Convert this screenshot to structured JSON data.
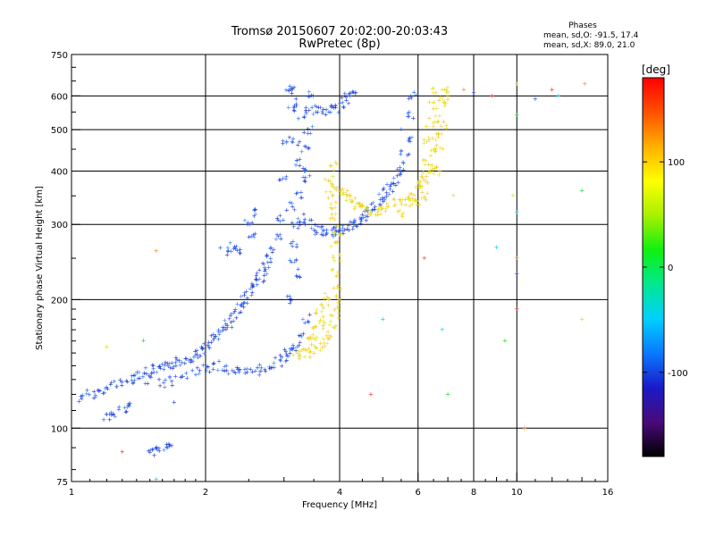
{
  "header": {
    "title_line1": "Tromsø 20150607 20:02:00-20:03:43",
    "title_line2": "RwPretec (8p)",
    "stats_heading": "Phases",
    "stats_o": "mean, sd,O: -91.5, 17.4",
    "stats_x": "mean, sd,X: 89.0, 21.0"
  },
  "chart_data": {
    "type": "scatter",
    "title": "Tromsø 20150607 20:02:00-20:03:43",
    "subtitle": "RwPretec (8p)",
    "xlabel": "Frequency [MHz]",
    "ylabel": "Stationary phase Virtual Height [km]",
    "x_scale": "log",
    "y_scale": "log",
    "xlim": [
      1,
      16
    ],
    "ylim": [
      75,
      750
    ],
    "x_ticks": [
      1,
      2,
      4,
      6,
      8,
      10,
      16
    ],
    "x_tick_labels": [
      "1",
      "2",
      "4",
      "6",
      "8",
      "10",
      "16"
    ],
    "x_minor_ticks": [
      3,
      5,
      7,
      9,
      12,
      14
    ],
    "y_ticks": [
      75,
      100,
      200,
      300,
      400,
      500,
      600,
      750
    ],
    "y_tick_labels": [
      "75",
      "100",
      "200",
      "300",
      "400",
      "500",
      "600",
      "750"
    ],
    "grid": true,
    "colorbar": {
      "label": "[deg]",
      "range": [
        -180,
        180
      ],
      "ticks": [
        100,
        0,
        -100
      ],
      "tick_labels": [
        "100",
        "0",
        "-100"
      ],
      "colormap": [
        "#000000",
        "#4a0a7a",
        "#1a1ac8",
        "#0a78ff",
        "#00d0ff",
        "#00e890",
        "#10f010",
        "#a8f000",
        "#ffff00",
        "#ffb000",
        "#ff5000",
        "#ff0000"
      ]
    },
    "series": [
      {
        "name": "O",
        "color_hint": "#1a3ae0",
        "phase_deg": -91.5,
        "points": [
          [
            1.0,
            115
          ],
          [
            1.05,
            117
          ],
          [
            1.1,
            120
          ],
          [
            1.15,
            121
          ],
          [
            1.2,
            123
          ],
          [
            1.25,
            126
          ],
          [
            1.3,
            128
          ],
          [
            1.35,
            130
          ],
          [
            1.4,
            132
          ],
          [
            1.45,
            134
          ],
          [
            1.5,
            136
          ],
          [
            1.55,
            137
          ],
          [
            1.6,
            138
          ],
          [
            1.65,
            139
          ],
          [
            1.7,
            141
          ],
          [
            1.75,
            143
          ],
          [
            1.8,
            145
          ],
          [
            1.85,
            146
          ],
          [
            1.9,
            148
          ],
          [
            1.95,
            151
          ],
          [
            2.0,
            154
          ],
          [
            2.05,
            158
          ],
          [
            2.1,
            162
          ],
          [
            2.15,
            166
          ],
          [
            2.2,
            170
          ],
          [
            2.25,
            176
          ],
          [
            2.3,
            182
          ],
          [
            2.35,
            188
          ],
          [
            2.4,
            194
          ],
          [
            2.45,
            200
          ],
          [
            2.5,
            206
          ],
          [
            2.55,
            212
          ],
          [
            2.6,
            218
          ],
          [
            2.65,
            225
          ],
          [
            2.7,
            232
          ],
          [
            2.75,
            240
          ],
          [
            2.8,
            250
          ],
          [
            2.85,
            262
          ],
          [
            2.9,
            280
          ],
          [
            2.95,
            310
          ],
          [
            3.0,
            380
          ],
          [
            3.05,
            470
          ],
          [
            3.1,
            560
          ],
          [
            3.15,
            630
          ],
          [
            1.5,
            130
          ],
          [
            1.6,
            127
          ],
          [
            1.7,
            129
          ],
          [
            1.8,
            132
          ],
          [
            1.9,
            135
          ],
          [
            2.0,
            138
          ],
          [
            2.1,
            140
          ],
          [
            2.2,
            138
          ],
          [
            2.3,
            136
          ],
          [
            2.4,
            135
          ],
          [
            2.5,
            135
          ],
          [
            2.6,
            136
          ],
          [
            2.7,
            138
          ],
          [
            2.8,
            140
          ],
          [
            2.9,
            143
          ],
          [
            3.0,
            146
          ],
          [
            3.1,
            150
          ],
          [
            3.2,
            155
          ],
          [
            3.3,
            162
          ],
          [
            3.05,
            150
          ],
          [
            3.1,
            200
          ],
          [
            3.15,
            250
          ],
          [
            3.2,
            300
          ],
          [
            3.25,
            350
          ],
          [
            3.3,
            400
          ],
          [
            3.35,
            450
          ],
          [
            3.4,
            500
          ],
          [
            3.42,
            550
          ],
          [
            3.45,
            600
          ],
          [
            3.1,
            610
          ],
          [
            3.2,
            580
          ],
          [
            3.3,
            540
          ],
          [
            3.25,
            420
          ],
          [
            3.35,
            380
          ],
          [
            3.2,
            470
          ],
          [
            3.1,
            330
          ],
          [
            3.15,
            270
          ],
          [
            3.25,
            230
          ],
          [
            3.35,
            180
          ],
          [
            3.3,
            310
          ],
          [
            3.4,
            300
          ],
          [
            3.5,
            295
          ],
          [
            3.6,
            290
          ],
          [
            3.7,
            288
          ],
          [
            3.8,
            287
          ],
          [
            3.9,
            288
          ],
          [
            4.0,
            290
          ],
          [
            4.1,
            293
          ],
          [
            4.2,
            296
          ],
          [
            4.3,
            300
          ],
          [
            4.4,
            305
          ],
          [
            4.5,
            310
          ],
          [
            4.6,
            316
          ],
          [
            4.7,
            322
          ],
          [
            4.8,
            330
          ],
          [
            4.9,
            338
          ],
          [
            5.0,
            346
          ],
          [
            5.1,
            356
          ],
          [
            5.2,
            366
          ],
          [
            5.3,
            378
          ],
          [
            5.4,
            392
          ],
          [
            5.5,
            410
          ],
          [
            5.6,
            440
          ],
          [
            5.7,
            480
          ],
          [
            5.8,
            540
          ],
          [
            5.85,
            600
          ],
          [
            3.6,
            560
          ],
          [
            3.7,
            550
          ],
          [
            3.8,
            552
          ],
          [
            3.9,
            560
          ],
          [
            4.0,
            570
          ],
          [
            4.1,
            585
          ],
          [
            4.2,
            598
          ],
          [
            4.3,
            605
          ],
          [
            2.3,
            265
          ],
          [
            2.4,
            260
          ],
          [
            2.2,
            258
          ],
          [
            2.5,
            300
          ],
          [
            2.6,
            320
          ],
          [
            2.55,
            280
          ],
          [
            1.2,
            107
          ],
          [
            1.25,
            108
          ],
          [
            1.3,
            110
          ],
          [
            1.35,
            112
          ],
          [
            1.5,
            88
          ],
          [
            1.55,
            89
          ],
          [
            1.6,
            90
          ],
          [
            1.65,
            90
          ]
        ]
      },
      {
        "name": "X",
        "color_hint": "#e6e61a",
        "phase_deg": 89.0,
        "points": [
          [
            3.4,
            150
          ],
          [
            3.5,
            152
          ],
          [
            3.6,
            155
          ],
          [
            3.7,
            158
          ],
          [
            3.8,
            162
          ],
          [
            3.85,
            170
          ],
          [
            3.9,
            180
          ],
          [
            3.9,
            190
          ],
          [
            3.95,
            200
          ],
          [
            3.95,
            215
          ],
          [
            3.9,
            230
          ],
          [
            3.95,
            250
          ],
          [
            3.9,
            270
          ],
          [
            3.95,
            290
          ],
          [
            3.9,
            310
          ],
          [
            3.85,
            330
          ],
          [
            3.8,
            350
          ],
          [
            3.8,
            380
          ],
          [
            3.85,
            410
          ],
          [
            3.45,
            165
          ],
          [
            3.55,
            175
          ],
          [
            3.6,
            185
          ],
          [
            3.7,
            195
          ],
          [
            3.75,
            205
          ],
          [
            3.65,
            175
          ],
          [
            3.5,
            160
          ],
          [
            3.3,
            150
          ],
          [
            3.2,
            148
          ],
          [
            3.9,
            370
          ],
          [
            4.0,
            360
          ],
          [
            4.1,
            352
          ],
          [
            4.2,
            345
          ],
          [
            4.3,
            338
          ],
          [
            4.4,
            333
          ],
          [
            4.5,
            328
          ],
          [
            4.6,
            325
          ],
          [
            4.7,
            322
          ],
          [
            4.8,
            320
          ],
          [
            4.9,
            322
          ],
          [
            5.0,
            326
          ],
          [
            5.2,
            330
          ],
          [
            5.4,
            336
          ],
          [
            5.6,
            342
          ],
          [
            5.8,
            352
          ],
          [
            6.0,
            362
          ],
          [
            6.1,
            370
          ],
          [
            6.2,
            380
          ],
          [
            6.3,
            392
          ],
          [
            6.4,
            410
          ],
          [
            6.5,
            440
          ],
          [
            6.6,
            480
          ],
          [
            6.7,
            530
          ],
          [
            6.8,
            580
          ],
          [
            6.85,
            620
          ],
          [
            6.2,
            420
          ],
          [
            6.3,
            470
          ],
          [
            6.4,
            520
          ],
          [
            6.5,
            570
          ],
          [
            6.6,
            610
          ],
          [
            6.9,
            600
          ],
          [
            6.8,
            500
          ],
          [
            6.7,
            450
          ],
          [
            6.6,
            400
          ],
          [
            5.5,
            320
          ],
          [
            5.7,
            335
          ],
          [
            5.9,
            345
          ],
          [
            6.0,
            340
          ],
          [
            6.2,
            350
          ]
        ]
      },
      {
        "name": "noise",
        "points": [
          [
            1.3,
            88
          ],
          [
            1.55,
            76
          ],
          [
            1.45,
            160
          ],
          [
            1.2,
            155
          ],
          [
            1.55,
            260
          ],
          [
            1.7,
            115
          ],
          [
            6.2,
            250
          ],
          [
            6.8,
            170
          ],
          [
            7.0,
            120
          ],
          [
            7.2,
            350
          ],
          [
            7.6,
            620
          ],
          [
            8.0,
            610
          ],
          [
            8.8,
            600
          ],
          [
            9.0,
            265
          ],
          [
            9.4,
            160
          ],
          [
            9.8,
            350
          ],
          [
            10.0,
            250
          ],
          [
            10.0,
            230
          ],
          [
            10.0,
            190
          ],
          [
            10.0,
            320
          ],
          [
            10.0,
            540
          ],
          [
            10.0,
            640
          ],
          [
            10.4,
            100
          ],
          [
            11.0,
            590
          ],
          [
            12.0,
            620
          ],
          [
            12.4,
            600
          ],
          [
            14.0,
            360
          ],
          [
            14.0,
            180
          ],
          [
            14.2,
            640
          ],
          [
            5.5,
            500
          ],
          [
            4.7,
            120
          ],
          [
            5.0,
            180
          ]
        ]
      }
    ]
  }
}
